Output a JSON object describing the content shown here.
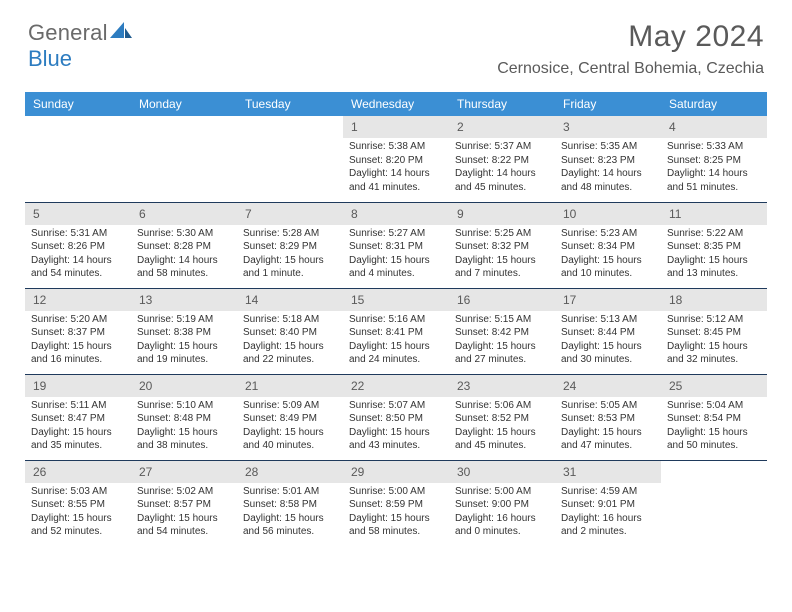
{
  "brand": {
    "part1": "General",
    "part2": "Blue"
  },
  "title": "May 2024",
  "location": "Cernosice, Central Bohemia, Czechia",
  "colors": {
    "header_bg": "#3b8fd4",
    "header_text": "#ffffff",
    "daynum_bg": "#e6e6e6",
    "row_border": "#1f3a5c",
    "brand_gray": "#6a6a6a",
    "brand_blue": "#2d7cc0"
  },
  "weekdays": [
    "Sunday",
    "Monday",
    "Tuesday",
    "Wednesday",
    "Thursday",
    "Friday",
    "Saturday"
  ],
  "weeks": [
    [
      null,
      null,
      null,
      {
        "n": "1",
        "l1": "Sunrise: 5:38 AM",
        "l2": "Sunset: 8:20 PM",
        "l3": "Daylight: 14 hours",
        "l4": "and 41 minutes."
      },
      {
        "n": "2",
        "l1": "Sunrise: 5:37 AM",
        "l2": "Sunset: 8:22 PM",
        "l3": "Daylight: 14 hours",
        "l4": "and 45 minutes."
      },
      {
        "n": "3",
        "l1": "Sunrise: 5:35 AM",
        "l2": "Sunset: 8:23 PM",
        "l3": "Daylight: 14 hours",
        "l4": "and 48 minutes."
      },
      {
        "n": "4",
        "l1": "Sunrise: 5:33 AM",
        "l2": "Sunset: 8:25 PM",
        "l3": "Daylight: 14 hours",
        "l4": "and 51 minutes."
      }
    ],
    [
      {
        "n": "5",
        "l1": "Sunrise: 5:31 AM",
        "l2": "Sunset: 8:26 PM",
        "l3": "Daylight: 14 hours",
        "l4": "and 54 minutes."
      },
      {
        "n": "6",
        "l1": "Sunrise: 5:30 AM",
        "l2": "Sunset: 8:28 PM",
        "l3": "Daylight: 14 hours",
        "l4": "and 58 minutes."
      },
      {
        "n": "7",
        "l1": "Sunrise: 5:28 AM",
        "l2": "Sunset: 8:29 PM",
        "l3": "Daylight: 15 hours",
        "l4": "and 1 minute."
      },
      {
        "n": "8",
        "l1": "Sunrise: 5:27 AM",
        "l2": "Sunset: 8:31 PM",
        "l3": "Daylight: 15 hours",
        "l4": "and 4 minutes."
      },
      {
        "n": "9",
        "l1": "Sunrise: 5:25 AM",
        "l2": "Sunset: 8:32 PM",
        "l3": "Daylight: 15 hours",
        "l4": "and 7 minutes."
      },
      {
        "n": "10",
        "l1": "Sunrise: 5:23 AM",
        "l2": "Sunset: 8:34 PM",
        "l3": "Daylight: 15 hours",
        "l4": "and 10 minutes."
      },
      {
        "n": "11",
        "l1": "Sunrise: 5:22 AM",
        "l2": "Sunset: 8:35 PM",
        "l3": "Daylight: 15 hours",
        "l4": "and 13 minutes."
      }
    ],
    [
      {
        "n": "12",
        "l1": "Sunrise: 5:20 AM",
        "l2": "Sunset: 8:37 PM",
        "l3": "Daylight: 15 hours",
        "l4": "and 16 minutes."
      },
      {
        "n": "13",
        "l1": "Sunrise: 5:19 AM",
        "l2": "Sunset: 8:38 PM",
        "l3": "Daylight: 15 hours",
        "l4": "and 19 minutes."
      },
      {
        "n": "14",
        "l1": "Sunrise: 5:18 AM",
        "l2": "Sunset: 8:40 PM",
        "l3": "Daylight: 15 hours",
        "l4": "and 22 minutes."
      },
      {
        "n": "15",
        "l1": "Sunrise: 5:16 AM",
        "l2": "Sunset: 8:41 PM",
        "l3": "Daylight: 15 hours",
        "l4": "and 24 minutes."
      },
      {
        "n": "16",
        "l1": "Sunrise: 5:15 AM",
        "l2": "Sunset: 8:42 PM",
        "l3": "Daylight: 15 hours",
        "l4": "and 27 minutes."
      },
      {
        "n": "17",
        "l1": "Sunrise: 5:13 AM",
        "l2": "Sunset: 8:44 PM",
        "l3": "Daylight: 15 hours",
        "l4": "and 30 minutes."
      },
      {
        "n": "18",
        "l1": "Sunrise: 5:12 AM",
        "l2": "Sunset: 8:45 PM",
        "l3": "Daylight: 15 hours",
        "l4": "and 32 minutes."
      }
    ],
    [
      {
        "n": "19",
        "l1": "Sunrise: 5:11 AM",
        "l2": "Sunset: 8:47 PM",
        "l3": "Daylight: 15 hours",
        "l4": "and 35 minutes."
      },
      {
        "n": "20",
        "l1": "Sunrise: 5:10 AM",
        "l2": "Sunset: 8:48 PM",
        "l3": "Daylight: 15 hours",
        "l4": "and 38 minutes."
      },
      {
        "n": "21",
        "l1": "Sunrise: 5:09 AM",
        "l2": "Sunset: 8:49 PM",
        "l3": "Daylight: 15 hours",
        "l4": "and 40 minutes."
      },
      {
        "n": "22",
        "l1": "Sunrise: 5:07 AM",
        "l2": "Sunset: 8:50 PM",
        "l3": "Daylight: 15 hours",
        "l4": "and 43 minutes."
      },
      {
        "n": "23",
        "l1": "Sunrise: 5:06 AM",
        "l2": "Sunset: 8:52 PM",
        "l3": "Daylight: 15 hours",
        "l4": "and 45 minutes."
      },
      {
        "n": "24",
        "l1": "Sunrise: 5:05 AM",
        "l2": "Sunset: 8:53 PM",
        "l3": "Daylight: 15 hours",
        "l4": "and 47 minutes."
      },
      {
        "n": "25",
        "l1": "Sunrise: 5:04 AM",
        "l2": "Sunset: 8:54 PM",
        "l3": "Daylight: 15 hours",
        "l4": "and 50 minutes."
      }
    ],
    [
      {
        "n": "26",
        "l1": "Sunrise: 5:03 AM",
        "l2": "Sunset: 8:55 PM",
        "l3": "Daylight: 15 hours",
        "l4": "and 52 minutes."
      },
      {
        "n": "27",
        "l1": "Sunrise: 5:02 AM",
        "l2": "Sunset: 8:57 PM",
        "l3": "Daylight: 15 hours",
        "l4": "and 54 minutes."
      },
      {
        "n": "28",
        "l1": "Sunrise: 5:01 AM",
        "l2": "Sunset: 8:58 PM",
        "l3": "Daylight: 15 hours",
        "l4": "and 56 minutes."
      },
      {
        "n": "29",
        "l1": "Sunrise: 5:00 AM",
        "l2": "Sunset: 8:59 PM",
        "l3": "Daylight: 15 hours",
        "l4": "and 58 minutes."
      },
      {
        "n": "30",
        "l1": "Sunrise: 5:00 AM",
        "l2": "Sunset: 9:00 PM",
        "l3": "Daylight: 16 hours",
        "l4": "and 0 minutes."
      },
      {
        "n": "31",
        "l1": "Sunrise: 4:59 AM",
        "l2": "Sunset: 9:01 PM",
        "l3": "Daylight: 16 hours",
        "l4": "and 2 minutes."
      },
      null
    ]
  ]
}
